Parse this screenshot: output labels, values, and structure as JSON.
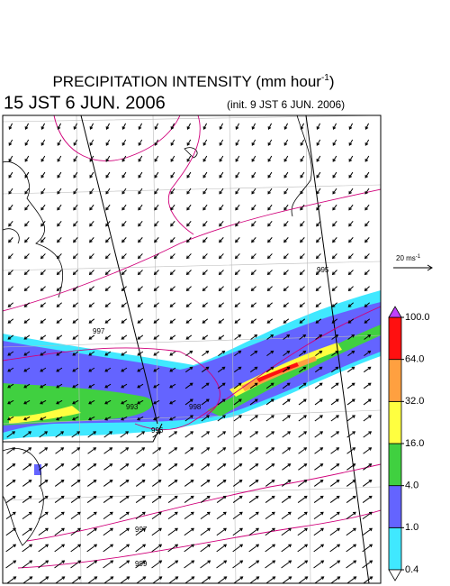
{
  "title": {
    "text": "PRECIPITATION INTENSITY (mm hour",
    "superscript": "-1",
    "close": ")"
  },
  "valid_time": "15 JST 6 JUN. 2006",
  "init_time": "(init. 9 JST 6 JUN. 2006)",
  "vector_scale": {
    "text": "20 ms",
    "superscript": "-1"
  },
  "colorbar": {
    "levels": [
      {
        "value": 0.4,
        "label": "0.4"
      },
      {
        "value": 1,
        "label": "1.0"
      },
      {
        "value": 4,
        "label": "4.0"
      },
      {
        "value": 16,
        "label": "16.0"
      },
      {
        "value": 32,
        "label": "32.0"
      },
      {
        "value": 64,
        "label": "64.0"
      },
      {
        "value": 100,
        "label": "100.0"
      }
    ],
    "colors": [
      "#40e8ff",
      "#6464ff",
      "#40d040",
      "#ffff40",
      "#ffa040",
      "#ff1010"
    ],
    "under_color": "#ffffff",
    "over_color": "#c040ff"
  },
  "contour_labels": [
    "995",
    "997",
    "993",
    "996",
    "998",
    "997",
    "999"
  ]
}
